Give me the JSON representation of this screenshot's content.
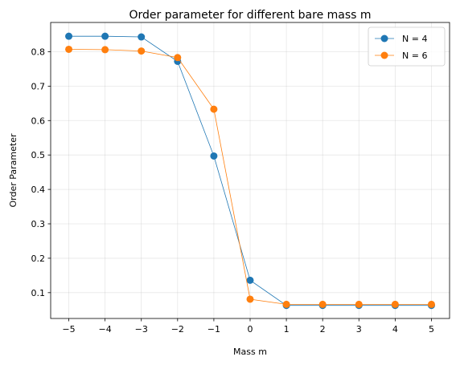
{
  "chart_data": {
    "type": "line",
    "title": "Order parameter for different bare mass m",
    "xlabel": "Mass m",
    "ylabel": "Order Parameter",
    "x": [
      -5,
      -4,
      -3,
      -2,
      -1,
      0,
      1,
      2,
      3,
      4,
      5
    ],
    "xlim": [
      -5.5,
      5.5
    ],
    "ylim": [
      0.025,
      0.885
    ],
    "xticks": [
      -5,
      -4,
      -3,
      -2,
      -1,
      0,
      1,
      2,
      3,
      4,
      5
    ],
    "xtick_labels": [
      "−5",
      "−4",
      "−3",
      "−2",
      "−1",
      "0",
      "1",
      "2",
      "3",
      "4",
      "5"
    ],
    "yticks": [
      0.1,
      0.2,
      0.3,
      0.4,
      0.5,
      0.6,
      0.7,
      0.8
    ],
    "ytick_labels": [
      "0.1",
      "0.2",
      "0.3",
      "0.4",
      "0.5",
      "0.6",
      "0.7",
      "0.8"
    ],
    "grid": true,
    "legend_position": "top-right",
    "series": [
      {
        "name": "N = 4",
        "color": "#1f77b4",
        "values": [
          0.845,
          0.845,
          0.843,
          0.772,
          0.497,
          0.136,
          0.063,
          0.063,
          0.063,
          0.063,
          0.063
        ]
      },
      {
        "name": "N = 6",
        "color": "#ff7f0e",
        "values": [
          0.807,
          0.806,
          0.802,
          0.783,
          0.633,
          0.081,
          0.066,
          0.066,
          0.066,
          0.066,
          0.066
        ]
      }
    ]
  }
}
